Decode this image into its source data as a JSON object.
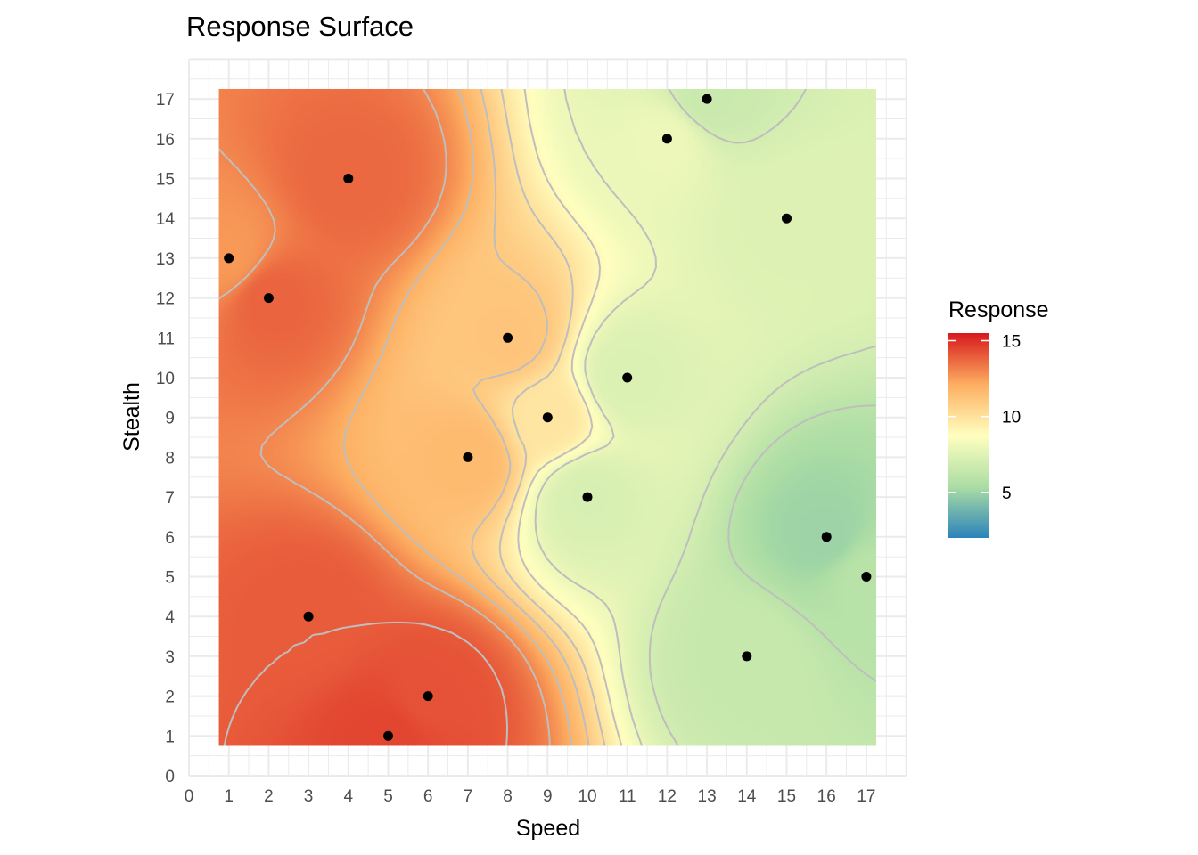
{
  "chart_data": {
    "type": "heatmap",
    "title": "Response Surface",
    "xlabel": "Speed",
    "ylabel": "Stealth",
    "xlim": [
      0,
      18
    ],
    "ylim": [
      0,
      18
    ],
    "x_ticks": [
      0,
      1,
      2,
      3,
      4,
      5,
      6,
      7,
      8,
      9,
      10,
      11,
      12,
      13,
      14,
      15,
      16,
      17
    ],
    "y_ticks": [
      0,
      1,
      2,
      3,
      4,
      5,
      6,
      7,
      8,
      9,
      10,
      11,
      12,
      13,
      14,
      15,
      16,
      17
    ],
    "grid": true,
    "colorscale": {
      "name": "Spectral",
      "colors": [
        "#2b83ba",
        "#abdda4",
        "#ffffbf",
        "#fdae61",
        "#d7191c"
      ],
      "range": [
        2,
        15.5
      ]
    },
    "legend": {
      "title": "Response",
      "position": "right",
      "ticks": [
        5,
        10,
        15
      ]
    },
    "points": [
      {
        "x": 1,
        "y": 13,
        "response": 12.6
      },
      {
        "x": 2,
        "y": 12,
        "response": 13.8
      },
      {
        "x": 3,
        "y": 4,
        "response": 14.0
      },
      {
        "x": 4,
        "y": 15,
        "response": 13.7
      },
      {
        "x": 5,
        "y": 1,
        "response": 14.5
      },
      {
        "x": 6,
        "y": 2,
        "response": 14.2
      },
      {
        "x": 7,
        "y": 8,
        "response": 11.6
      },
      {
        "x": 8,
        "y": 11,
        "response": 11.2
      },
      {
        "x": 9,
        "y": 9,
        "response": 9.8
      },
      {
        "x": 10,
        "y": 7,
        "response": 7.2
      },
      {
        "x": 11,
        "y": 10,
        "response": 7.3
      },
      {
        "x": 12,
        "y": 16,
        "response": 8.0
      },
      {
        "x": 13,
        "y": 17,
        "response": 6.6
      },
      {
        "x": 14,
        "y": 3,
        "response": 6.5
      },
      {
        "x": 15,
        "y": 14,
        "response": 7.4
      },
      {
        "x": 16,
        "y": 6,
        "response": 5.0
      },
      {
        "x": 17,
        "y": 5,
        "response": 5.9
      }
    ]
  }
}
